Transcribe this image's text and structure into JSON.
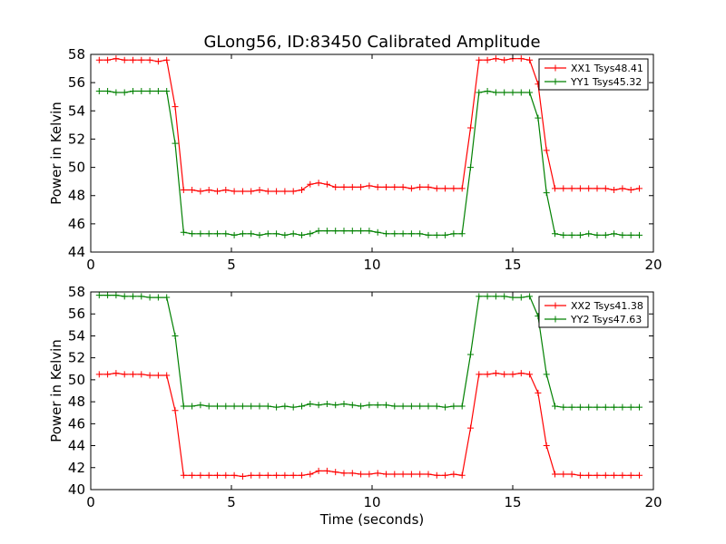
{
  "chart_data": [
    {
      "type": "line",
      "title": "GLong56, ID:83450 Calibrated Amplitude",
      "xlabel": "",
      "ylabel": "Power in Kelvin",
      "xlim": [
        0,
        20
      ],
      "ylim": [
        44,
        58
      ],
      "xticks": [
        "0",
        "5",
        "10",
        "15",
        "20"
      ],
      "yticks": [
        "44",
        "46",
        "48",
        "50",
        "52",
        "54",
        "56",
        "58"
      ],
      "legend_position": "top-right",
      "grid": false,
      "x": [
        0.3,
        0.6,
        0.9,
        1.2,
        1.5,
        1.8,
        2.1,
        2.4,
        2.7,
        3.0,
        3.3,
        3.6,
        3.9,
        4.2,
        4.5,
        4.8,
        5.1,
        5.4,
        5.7,
        6.0,
        6.3,
        6.6,
        6.9,
        7.2,
        7.5,
        7.8,
        8.1,
        8.4,
        8.7,
        9.0,
        9.3,
        9.6,
        9.9,
        10.2,
        10.5,
        10.8,
        11.1,
        11.4,
        11.7,
        12.0,
        12.3,
        12.6,
        12.9,
        13.2,
        13.5,
        13.8,
        14.1,
        14.4,
        14.7,
        15.0,
        15.3,
        15.6,
        15.9,
        16.2,
        16.5,
        16.8,
        17.1,
        17.4,
        17.7,
        18.0,
        18.3,
        18.6,
        18.9,
        19.2,
        19.5
      ],
      "series": [
        {
          "name": "XX1 Tsys48.41",
          "color": "#ff0000",
          "values": [
            57.6,
            57.6,
            57.7,
            57.6,
            57.6,
            57.6,
            57.6,
            57.5,
            57.6,
            54.3,
            48.4,
            48.4,
            48.3,
            48.4,
            48.3,
            48.4,
            48.3,
            48.3,
            48.3,
            48.4,
            48.3,
            48.3,
            48.3,
            48.3,
            48.4,
            48.8,
            48.9,
            48.8,
            48.6,
            48.6,
            48.6,
            48.6,
            48.7,
            48.6,
            48.6,
            48.6,
            48.6,
            48.5,
            48.6,
            48.6,
            48.5,
            48.5,
            48.5,
            48.5,
            52.8,
            57.6,
            57.6,
            57.7,
            57.6,
            57.7,
            57.7,
            57.6,
            55.9,
            51.2,
            48.5,
            48.5,
            48.5,
            48.5,
            48.5,
            48.5,
            48.5,
            48.4,
            48.5,
            48.4,
            48.5
          ]
        },
        {
          "name": "YY1 Tsys45.32",
          "color": "#008000",
          "values": [
            55.4,
            55.4,
            55.3,
            55.3,
            55.4,
            55.4,
            55.4,
            55.4,
            55.4,
            51.7,
            45.4,
            45.3,
            45.3,
            45.3,
            45.3,
            45.3,
            45.2,
            45.3,
            45.3,
            45.2,
            45.3,
            45.3,
            45.2,
            45.3,
            45.2,
            45.3,
            45.5,
            45.5,
            45.5,
            45.5,
            45.5,
            45.5,
            45.5,
            45.4,
            45.3,
            45.3,
            45.3,
            45.3,
            45.3,
            45.2,
            45.2,
            45.2,
            45.3,
            45.3,
            50.0,
            55.3,
            55.4,
            55.3,
            55.3,
            55.3,
            55.3,
            55.3,
            53.5,
            48.2,
            45.3,
            45.2,
            45.2,
            45.2,
            45.3,
            45.2,
            45.2,
            45.3,
            45.2,
            45.2,
            45.2
          ]
        }
      ]
    },
    {
      "type": "line",
      "title": "",
      "xlabel": "Time (seconds)",
      "ylabel": "Power in Kelvin",
      "xlim": [
        0,
        20
      ],
      "ylim": [
        40,
        58
      ],
      "xticks": [
        "0",
        "5",
        "10",
        "15",
        "20"
      ],
      "yticks": [
        "40",
        "42",
        "44",
        "46",
        "48",
        "50",
        "52",
        "54",
        "56",
        "58"
      ],
      "legend_position": "top-right",
      "grid": false,
      "x": [
        0.3,
        0.6,
        0.9,
        1.2,
        1.5,
        1.8,
        2.1,
        2.4,
        2.7,
        3.0,
        3.3,
        3.6,
        3.9,
        4.2,
        4.5,
        4.8,
        5.1,
        5.4,
        5.7,
        6.0,
        6.3,
        6.6,
        6.9,
        7.2,
        7.5,
        7.8,
        8.1,
        8.4,
        8.7,
        9.0,
        9.3,
        9.6,
        9.9,
        10.2,
        10.5,
        10.8,
        11.1,
        11.4,
        11.7,
        12.0,
        12.3,
        12.6,
        12.9,
        13.2,
        13.5,
        13.8,
        14.1,
        14.4,
        14.7,
        15.0,
        15.3,
        15.6,
        15.9,
        16.2,
        16.5,
        16.8,
        17.1,
        17.4,
        17.7,
        18.0,
        18.3,
        18.6,
        18.9,
        19.2,
        19.5
      ],
      "series": [
        {
          "name": "XX2 Tsys41.38",
          "color": "#ff0000",
          "values": [
            50.5,
            50.5,
            50.6,
            50.5,
            50.5,
            50.5,
            50.4,
            50.4,
            50.4,
            47.2,
            41.3,
            41.3,
            41.3,
            41.3,
            41.3,
            41.3,
            41.3,
            41.2,
            41.3,
            41.3,
            41.3,
            41.3,
            41.3,
            41.3,
            41.3,
            41.4,
            41.7,
            41.7,
            41.6,
            41.5,
            41.5,
            41.4,
            41.4,
            41.5,
            41.4,
            41.4,
            41.4,
            41.4,
            41.4,
            41.4,
            41.3,
            41.3,
            41.4,
            41.3,
            45.6,
            50.5,
            50.5,
            50.6,
            50.5,
            50.5,
            50.6,
            50.5,
            48.8,
            44.0,
            41.4,
            41.4,
            41.4,
            41.3,
            41.3,
            41.3,
            41.3,
            41.3,
            41.3,
            41.3,
            41.3
          ]
        },
        {
          "name": "YY2 Tsys47.63",
          "color": "#008000",
          "values": [
            57.7,
            57.7,
            57.7,
            57.6,
            57.6,
            57.6,
            57.5,
            57.5,
            57.5,
            54.0,
            47.6,
            47.6,
            47.7,
            47.6,
            47.6,
            47.6,
            47.6,
            47.6,
            47.6,
            47.6,
            47.6,
            47.5,
            47.6,
            47.5,
            47.6,
            47.8,
            47.7,
            47.8,
            47.7,
            47.8,
            47.7,
            47.6,
            47.7,
            47.7,
            47.7,
            47.6,
            47.6,
            47.6,
            47.6,
            47.6,
            47.6,
            47.5,
            47.6,
            47.6,
            52.3,
            57.6,
            57.6,
            57.6,
            57.6,
            57.5,
            57.5,
            57.6,
            55.8,
            50.5,
            47.6,
            47.5,
            47.5,
            47.5,
            47.5,
            47.5,
            47.5,
            47.5,
            47.5,
            47.5,
            47.5
          ]
        }
      ]
    }
  ]
}
